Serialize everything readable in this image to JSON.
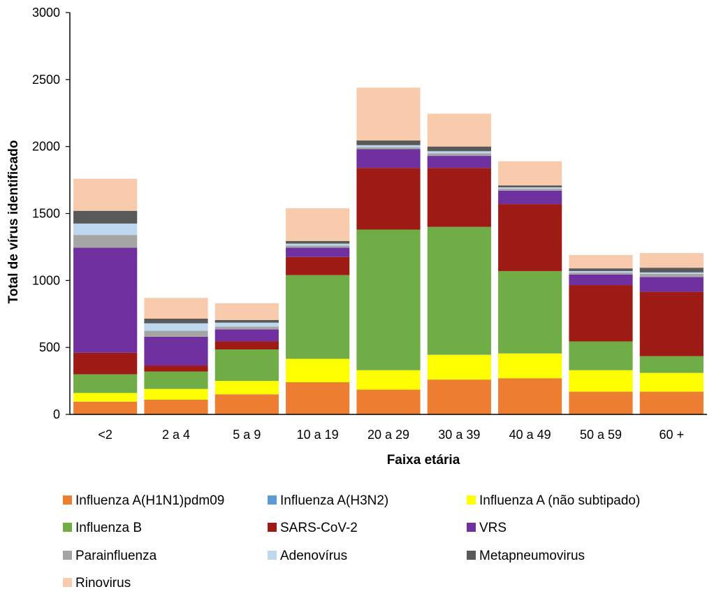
{
  "chart_data": {
    "type": "bar",
    "stacked": true,
    "title": "",
    "xlabel": "Faixa etária",
    "ylabel": "Total de vírus identificado",
    "ylim": [
      0,
      3000
    ],
    "yticks": [
      0,
      500,
      1000,
      1500,
      2000,
      2500,
      3000
    ],
    "grid": false,
    "legend_position": "bottom",
    "categories": [
      "<2",
      "2 a 4",
      "5 a 9",
      "10 a 19",
      "20 a 29",
      "30 a 39",
      "40 a 49",
      "50 a 59",
      "60 +"
    ],
    "series": [
      {
        "name": "Influenza A(H1N1)pdm09",
        "color": "#ED7D31",
        "values": [
          95,
          110,
          150,
          240,
          185,
          260,
          270,
          170,
          170
        ]
      },
      {
        "name": "Influenza A(H3N2)",
        "color": "#5B9BD5",
        "values": [
          0,
          0,
          0,
          0,
          0,
          0,
          0,
          0,
          0
        ]
      },
      {
        "name": "Influenza A (não subtipado)",
        "color": "#FFFF00",
        "values": [
          65,
          80,
          100,
          175,
          145,
          185,
          185,
          160,
          140
        ]
      },
      {
        "name": "Influenza B",
        "color": "#70AD47",
        "values": [
          140,
          130,
          235,
          625,
          1050,
          955,
          615,
          215,
          125
        ]
      },
      {
        "name": "SARS-CoV-2",
        "color": "#9E1A15",
        "values": [
          160,
          45,
          60,
          135,
          460,
          440,
          500,
          420,
          480
        ]
      },
      {
        "name": "VRS",
        "color": "#7030A0",
        "values": [
          785,
          215,
          90,
          70,
          140,
          90,
          100,
          80,
          110
        ]
      },
      {
        "name": "Parainfluenza",
        "color": "#A5A5A5",
        "values": [
          95,
          45,
          20,
          15,
          15,
          20,
          15,
          15,
          25
        ]
      },
      {
        "name": "Adenovírus",
        "color": "#BDD7EE",
        "values": [
          85,
          55,
          30,
          15,
          15,
          15,
          10,
          10,
          10
        ]
      },
      {
        "name": "Metapneumovirus",
        "color": "#595959",
        "values": [
          95,
          35,
          20,
          20,
          35,
          35,
          15,
          20,
          35
        ]
      },
      {
        "name": "Rinovirus",
        "color": "#F8CBAD",
        "values": [
          240,
          155,
          125,
          245,
          395,
          245,
          180,
          100,
          110
        ]
      }
    ]
  }
}
